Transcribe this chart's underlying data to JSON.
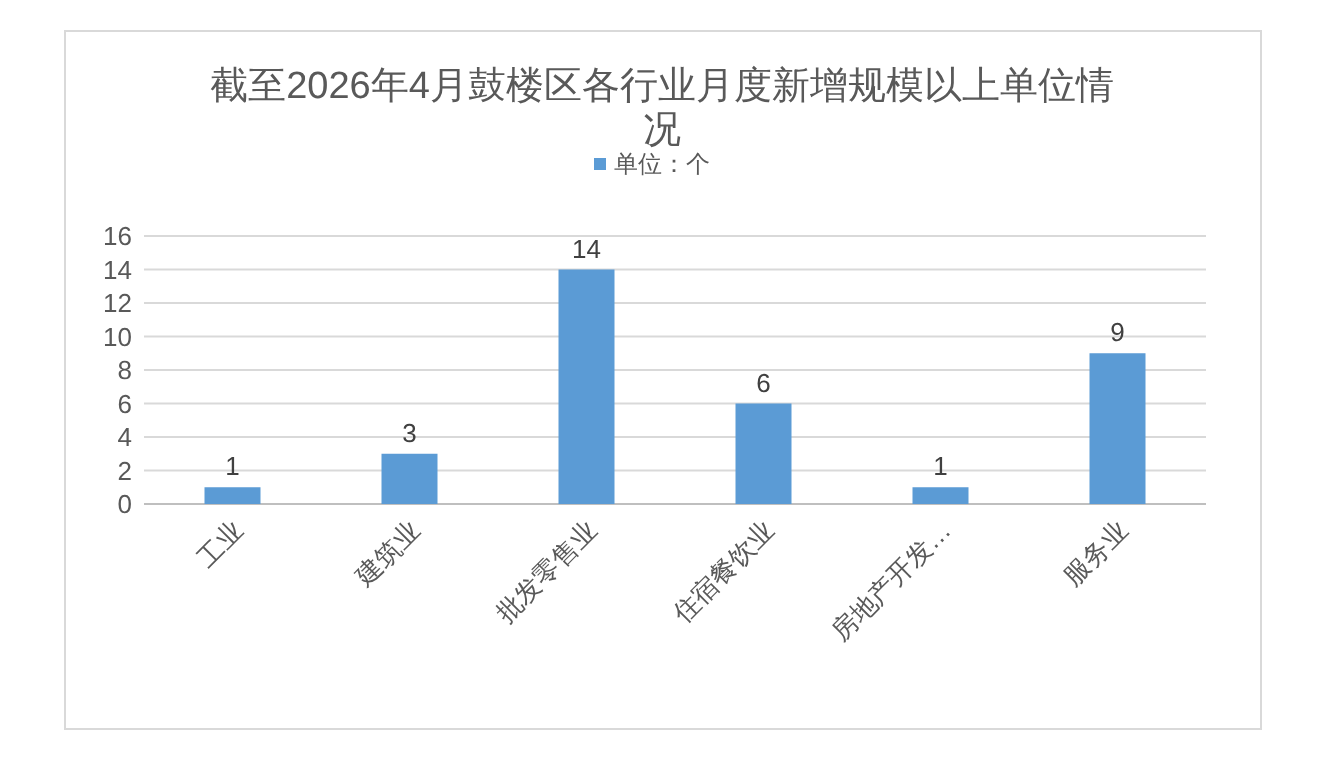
{
  "chart_data": {
    "type": "bar",
    "title": "截至2026年4月鼓楼区各行业月度新增规模以上单位情况",
    "categories": [
      "工业",
      "建筑业",
      "批发零售业",
      "住宿餐饮业",
      "房地产开发…",
      "服务业"
    ],
    "series": [
      {
        "name": "单位：个",
        "color": "#5b9bd5",
        "values": [
          1,
          3,
          14,
          6,
          1,
          9
        ]
      }
    ],
    "ylim": [
      0,
      16
    ],
    "yticks": [
      0,
      2,
      4,
      6,
      8,
      10,
      12,
      14,
      16
    ],
    "grid": "y",
    "legend": "top",
    "data_labels": true
  }
}
